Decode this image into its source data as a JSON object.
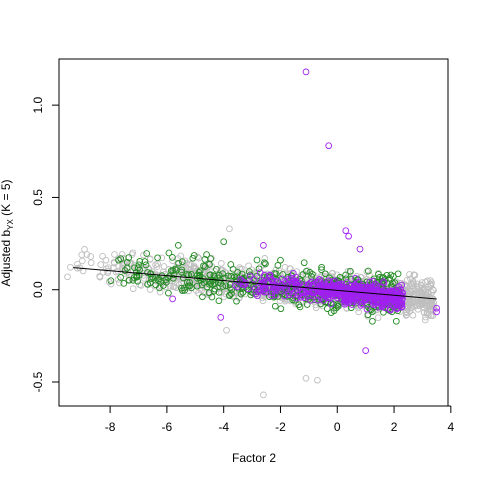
{
  "chart_data": {
    "type": "scatter",
    "xlabel": "Factor 2",
    "ylabel": {
      "main": "Adjusted b",
      "sub": "YX",
      "suffix": "  (K = 5)"
    },
    "xlim": [
      -9.8,
      3.9
    ],
    "ylim": [
      -0.63,
      1.25
    ],
    "x_ticks": [
      -8,
      -6,
      -4,
      -2,
      0,
      2,
      4
    ],
    "y_ticks": [
      -0.5,
      0.0,
      0.5,
      1.0
    ],
    "x_tick_labels": [
      "-8",
      "-6",
      "-4",
      "-2",
      "0",
      "2",
      "4"
    ],
    "y_tick_labels": [
      "-0.5",
      "0.0",
      "0.5",
      "1.0"
    ],
    "grid": false,
    "legend": "none",
    "fit_line": {
      "x": [
        -9.3,
        3.5
      ],
      "y": [
        0.12,
        -0.05
      ],
      "color": "#000000"
    },
    "series": [
      {
        "color": "#bfbfbf",
        "cloud": {
          "count": 1100,
          "x_range": [
            -9.5,
            3.4
          ],
          "seed": 11,
          "slope": -0.0133,
          "intercept": -0.003,
          "sd": 0.055
        },
        "points": [
          {
            "x": -1.1,
            "y": -0.48
          },
          {
            "x": -0.7,
            "y": -0.49
          },
          {
            "x": -2.6,
            "y": -0.57
          },
          {
            "x": -3.9,
            "y": -0.22
          },
          {
            "x": -3.8,
            "y": 0.33
          },
          {
            "x": -9.5,
            "y": 0.07
          }
        ]
      },
      {
        "color": "#228b22",
        "cloud": {
          "count": 520,
          "x_range": [
            -8.2,
            2.2
          ],
          "seed": 23,
          "slope": -0.0133,
          "intercept": -0.003,
          "sd": 0.06
        },
        "points": [
          {
            "x": -5.6,
            "y": 0.24
          },
          {
            "x": -4.6,
            "y": 0.19
          },
          {
            "x": -4.0,
            "y": 0.26
          },
          {
            "x": -7.7,
            "y": 0.16
          },
          {
            "x": -2.0,
            "y": 0.16
          }
        ]
      },
      {
        "color": "#a020f0",
        "cloud": {
          "count": 520,
          "x_range": [
            -3.8,
            2.3
          ],
          "seed": 37,
          "slope": -0.0133,
          "intercept": -0.01,
          "sd": 0.035
        },
        "points": [
          {
            "x": -1.1,
            "y": 1.18
          },
          {
            "x": -0.3,
            "y": 0.78
          },
          {
            "x": 0.3,
            "y": 0.32
          },
          {
            "x": 0.4,
            "y": 0.29
          },
          {
            "x": 0.8,
            "y": 0.22
          },
          {
            "x": 1.0,
            "y": -0.33
          },
          {
            "x": 3.5,
            "y": -0.1
          },
          {
            "x": 3.5,
            "y": -0.12
          },
          {
            "x": -4.1,
            "y": -0.15
          },
          {
            "x": -5.8,
            "y": -0.05
          },
          {
            "x": -2.6,
            "y": 0.24
          }
        ]
      }
    ]
  }
}
